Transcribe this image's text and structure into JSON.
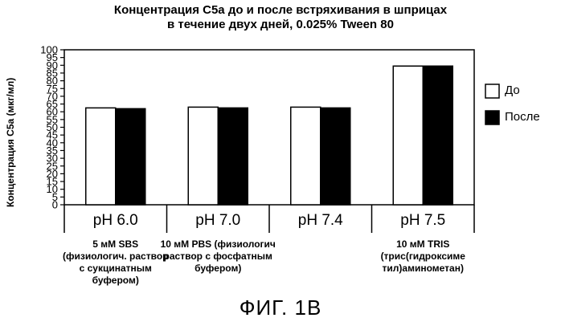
{
  "chart_data": {
    "type": "bar",
    "title_line1": "Концентрация С5а до и после встряхивания в шприцах",
    "title_line2": "в течение двух дней, 0.025% Tween 80",
    "ylabel": "Концентрация С5а (мкг/мл)",
    "ylim": [
      0,
      100
    ],
    "yticks": [
      "0",
      "5",
      "10",
      "15",
      "20",
      "25",
      "30",
      "35",
      "40",
      "45",
      "50",
      "55",
      "60",
      "65",
      "70",
      "75",
      "80",
      "85",
      "90",
      "95",
      "100"
    ],
    "categories": [
      "pH 6.0",
      "pH 7.0",
      "pH 7.4",
      "pH 7.5"
    ],
    "group_labels": [
      [
        "5 мМ SBS",
        "(физиологич. раствор",
        "с сукцинатным",
        "буфером)"
      ],
      [
        "10 мМ PBS (физиологич",
        "раствор с фосфатным",
        "буфером)"
      ],
      [],
      [
        "10 мМ TRIS",
        "(трис(гидроксиме",
        "тил)аминометан)"
      ]
    ],
    "series": [
      {
        "name": "До",
        "values": [
          62.5,
          63,
          63,
          89.5
        ],
        "color": "#ffffff"
      },
      {
        "name": "После",
        "values": [
          62,
          62.5,
          62.5,
          89.5
        ],
        "color": "#000000"
      }
    ],
    "grid": false,
    "legend_position": "right"
  },
  "caption": "ФИГ. 1В"
}
